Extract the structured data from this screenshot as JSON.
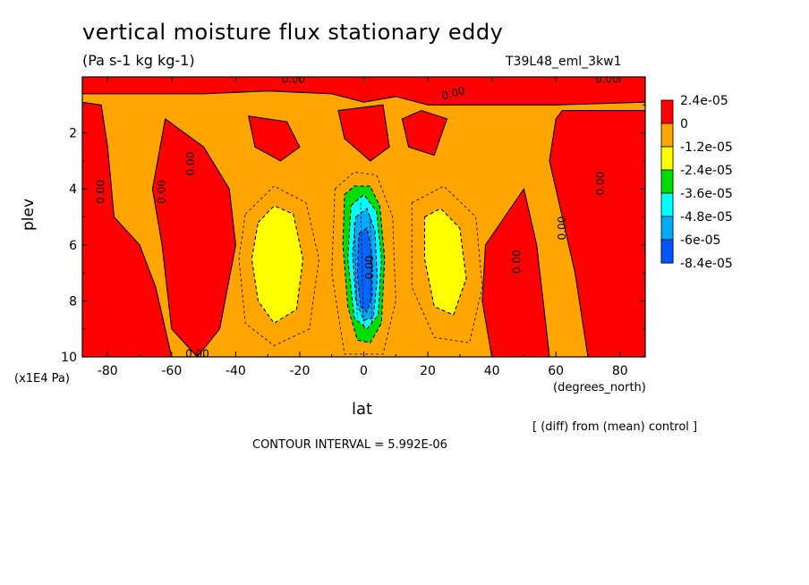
{
  "title": "vertical moisture flux stationary eddy",
  "units": "(Pa s-1 kg kg-1)",
  "run_name": "T39L48_eml_3kw1",
  "y_axis": {
    "label": "plev",
    "units": "(x1E4 Pa)"
  },
  "x_axis": {
    "label": "lat",
    "units": "(degrees_north)"
  },
  "diff_note": "[ (diff) from (mean) control ]",
  "contour_interval": "CONTOUR INTERVAL = 5.992E-06",
  "contour_label_text": "0.00",
  "chart_data": {
    "type": "heatmap",
    "x_ticks": [
      -80,
      -60,
      -40,
      -20,
      0,
      20,
      40,
      60,
      80
    ],
    "x_tick_labels": [
      "-80",
      "-60",
      "-40",
      "-20",
      "0",
      "20",
      "40",
      "60",
      "80"
    ],
    "xlim": [
      -87.9,
      87.9
    ],
    "y_ticks": [
      2,
      4,
      6,
      8,
      10
    ],
    "y_tick_labels": [
      "2",
      "4",
      "6",
      "8",
      "10"
    ],
    "ylim": [
      0,
      10
    ],
    "y_inverted": true,
    "colorbar": [
      {
        "label": "2.4e-05",
        "color": "#ff0000"
      },
      {
        "label": "0",
        "color": "#ffa500"
      },
      {
        "label": "-1.2e-05",
        "color": "#ffff00"
      },
      {
        "label": "-2.4e-05",
        "color": "#00dd00"
      },
      {
        "label": "-3.6e-05",
        "color": "#00ffff"
      },
      {
        "label": "-4.8e-05",
        "color": "#00aaff"
      },
      {
        "label": "-6e-05",
        "color": "#0066ff"
      },
      {
        "label": "-8.4e-05",
        "color": "#ffffff"
      }
    ],
    "regions": [
      {
        "name": "top-band",
        "level": "positive",
        "points": [
          [
            -88,
            0
          ],
          [
            88,
            0
          ],
          [
            88,
            0.9
          ],
          [
            60,
            1.0
          ],
          [
            40,
            1.0
          ],
          [
            20,
            1.0
          ],
          [
            10,
            0.7
          ],
          [
            0,
            0.9
          ],
          [
            -10,
            0.6
          ],
          [
            -30,
            0.5
          ],
          [
            -50,
            0.6
          ],
          [
            -70,
            0.6
          ],
          [
            -88,
            0.6
          ]
        ]
      },
      {
        "name": "nh-highlat",
        "level": "positive",
        "points": [
          [
            62,
            1.2
          ],
          [
            88,
            1.2
          ],
          [
            88,
            10
          ],
          [
            70,
            10
          ],
          [
            66,
            7
          ],
          [
            62,
            5
          ],
          [
            58,
            3
          ],
          [
            60,
            1.5
          ]
        ]
      },
      {
        "name": "sh-highlat",
        "level": "positive",
        "points": [
          [
            -88,
            0.9
          ],
          [
            -82,
            1.0
          ],
          [
            -80,
            2.5
          ],
          [
            -78,
            5
          ],
          [
            -70,
            6
          ],
          [
            -65,
            7.5
          ],
          [
            -60,
            10
          ],
          [
            -88,
            10
          ]
        ]
      },
      {
        "name": "sh-midlat",
        "level": "positive",
        "points": [
          [
            -62,
            1.5
          ],
          [
            -56,
            2
          ],
          [
            -50,
            2.5
          ],
          [
            -42,
            4
          ],
          [
            -40,
            6
          ],
          [
            -45,
            9
          ],
          [
            -52,
            10
          ],
          [
            -60,
            9
          ],
          [
            -63,
            6
          ],
          [
            -66,
            4
          ]
        ]
      },
      {
        "name": "nh-midlat",
        "level": "positive",
        "points": [
          [
            38,
            6
          ],
          [
            44,
            5
          ],
          [
            50,
            4
          ],
          [
            54,
            6
          ],
          [
            56,
            8
          ],
          [
            58,
            10
          ],
          [
            40,
            10
          ],
          [
            37,
            8
          ]
        ]
      },
      {
        "name": "sh-subtrop",
        "level": "positive",
        "points": [
          [
            -36,
            1.4
          ],
          [
            -24,
            1.6
          ],
          [
            -20,
            2.5
          ],
          [
            -26,
            3.0
          ],
          [
            -34,
            2.5
          ]
        ]
      },
      {
        "name": "nh-subtrop",
        "level": "positive",
        "points": [
          [
            12,
            1.5
          ],
          [
            18,
            1.2
          ],
          [
            26,
            1.5
          ],
          [
            22,
            2.8
          ],
          [
            14,
            2.5
          ]
        ]
      },
      {
        "name": "eq-upper",
        "level": "positive",
        "points": [
          [
            -8,
            1.2
          ],
          [
            6,
            1.0
          ],
          [
            8,
            2.5
          ],
          [
            2,
            3.0
          ],
          [
            -6,
            2.2
          ]
        ]
      },
      {
        "name": "sh-yellow",
        "level": "neg1",
        "points": [
          [
            -33,
            5.2
          ],
          [
            -28,
            4.6
          ],
          [
            -22,
            4.9
          ],
          [
            -19,
            6.5
          ],
          [
            -21,
            8.3
          ],
          [
            -28,
            8.8
          ],
          [
            -33,
            8.0
          ],
          [
            -35,
            6.5
          ]
        ]
      },
      {
        "name": "nh-yellow",
        "level": "neg1",
        "points": [
          [
            19,
            5.0
          ],
          [
            24,
            4.7
          ],
          [
            30,
            5.4
          ],
          [
            32,
            7.2
          ],
          [
            28,
            8.5
          ],
          [
            22,
            8.2
          ],
          [
            19,
            6.5
          ]
        ]
      },
      {
        "name": "eq-green",
        "level": "neg2",
        "points": [
          [
            -6,
            4.2
          ],
          [
            -3,
            3.9
          ],
          [
            2,
            3.9
          ],
          [
            5,
            4.6
          ],
          [
            6.5,
            6.5
          ],
          [
            5.5,
            8.8
          ],
          [
            2,
            9.5
          ],
          [
            -2,
            9.4
          ],
          [
            -5,
            8.2
          ],
          [
            -6.5,
            6
          ]
        ]
      },
      {
        "name": "eq-cyan",
        "level": "neg3",
        "points": [
          [
            -4,
            4.6
          ],
          [
            0,
            4.2
          ],
          [
            4,
            4.8
          ],
          [
            5.5,
            6.5
          ],
          [
            4.5,
            8.5
          ],
          [
            1,
            9.0
          ],
          [
            -3,
            8.6
          ],
          [
            -5,
            6.5
          ]
        ]
      },
      {
        "name": "eq-blue",
        "level": "neg5",
        "points": [
          [
            -2.5,
            5.0
          ],
          [
            1,
            4.7
          ],
          [
            3.5,
            5.5
          ],
          [
            4.2,
            7.2
          ],
          [
            3,
            8.6
          ],
          [
            0,
            8.7
          ],
          [
            -2.5,
            8.0
          ],
          [
            -3.5,
            6.3
          ]
        ]
      },
      {
        "name": "eq-deepblue",
        "level": "neg6",
        "points": [
          [
            -1.5,
            5.6
          ],
          [
            1,
            5.4
          ],
          [
            2.5,
            6.3
          ],
          [
            2.6,
            7.8
          ],
          [
            1,
            8.4
          ],
          [
            -1,
            8.2
          ],
          [
            -2,
            7.0
          ]
        ]
      }
    ],
    "dashed_contours": [
      [
        [
          -37,
          4.9
        ],
        [
          -28,
          3.9
        ],
        [
          -18,
          4.5
        ],
        [
          -14,
          6.5
        ],
        [
          -17,
          9.0
        ],
        [
          -28,
          9.6
        ],
        [
          -37,
          8.8
        ],
        [
          -39,
          6.5
        ]
      ],
      [
        [
          15,
          4.5
        ],
        [
          25,
          3.9
        ],
        [
          35,
          5.0
        ],
        [
          37,
          7.5
        ],
        [
          33,
          9.5
        ],
        [
          22,
          9.3
        ],
        [
          15,
          7.5
        ]
      ],
      [
        [
          -9,
          4.0
        ],
        [
          -3,
          3.4
        ],
        [
          4,
          3.5
        ],
        [
          9,
          5.0
        ],
        [
          10,
          8.0
        ],
        [
          6,
          9.9
        ],
        [
          -6,
          9.9
        ],
        [
          -10,
          7.0
        ]
      ]
    ],
    "contour_labels": [
      {
        "x": -54,
        "y": 3.1,
        "rotate": -90
      },
      {
        "x": -82,
        "y": 4.1,
        "rotate": -90
      },
      {
        "x": -63,
        "y": 4.1,
        "rotate": -90
      },
      {
        "x": 74,
        "y": 3.8,
        "rotate": -90
      },
      {
        "x": 62,
        "y": 5.4,
        "rotate": -90
      },
      {
        "x": 48,
        "y": 6.6,
        "rotate": -90
      },
      {
        "x": 2,
        "y": 6.8,
        "rotate": -90
      },
      {
        "x": -22,
        "y": 0.1,
        "rotate": 0
      },
      {
        "x": 28,
        "y": 0.6,
        "rotate": -15
      },
      {
        "x": 76,
        "y": 0.1,
        "rotate": 0
      },
      {
        "x": -52,
        "y": 9.9,
        "rotate": 0
      }
    ]
  }
}
